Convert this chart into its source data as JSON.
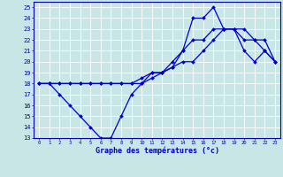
{
  "line1": {
    "x": [
      0,
      1,
      2,
      3,
      4,
      5,
      6,
      7,
      8,
      9,
      10,
      11,
      12,
      13,
      14,
      15,
      16,
      17,
      18,
      19,
      20,
      21,
      22,
      23
    ],
    "y": [
      18,
      18,
      17,
      16,
      15,
      14,
      13,
      13,
      15,
      17,
      18,
      19,
      19,
      20,
      21,
      24,
      24,
      25,
      23,
      23,
      21,
      20,
      21,
      20
    ]
  },
  "line2": {
    "x": [
      0,
      1,
      2,
      3,
      4,
      5,
      6,
      7,
      8,
      9,
      10,
      11,
      12,
      13,
      14,
      15,
      16,
      17,
      18,
      19,
      20,
      21,
      22,
      23
    ],
    "y": [
      18,
      18,
      18,
      18,
      18,
      18,
      18,
      18,
      18,
      18,
      18.5,
      19,
      19,
      19.5,
      21,
      22,
      22,
      23,
      23,
      23,
      22,
      22,
      22,
      20
    ]
  },
  "line3": {
    "x": [
      0,
      1,
      2,
      3,
      4,
      5,
      6,
      7,
      8,
      9,
      10,
      11,
      12,
      13,
      14,
      15,
      16,
      17,
      18,
      19,
      20,
      21,
      22,
      23
    ],
    "y": [
      18,
      18,
      18,
      18,
      18,
      18,
      18,
      18,
      18,
      18,
      18,
      18.5,
      19,
      19.5,
      20,
      20,
      21,
      22,
      23,
      23,
      23,
      22,
      21,
      20
    ]
  },
  "xlim": [
    -0.5,
    23.5
  ],
  "ylim": [
    13,
    25.5
  ],
  "yticks": [
    13,
    14,
    15,
    16,
    17,
    18,
    19,
    20,
    21,
    22,
    23,
    24,
    25
  ],
  "xticks": [
    0,
    1,
    2,
    3,
    4,
    5,
    6,
    7,
    8,
    9,
    10,
    11,
    12,
    13,
    14,
    15,
    16,
    17,
    18,
    19,
    20,
    21,
    22,
    23
  ],
  "xlabel": "Graphe des températures (°c)",
  "line_color": "#0000cc",
  "bg_color": "#c8e6e6",
  "grid_color": "#ffffff",
  "label_color": "#0000bb",
  "marker": "D",
  "markersize": 2.0,
  "linewidth": 0.9
}
